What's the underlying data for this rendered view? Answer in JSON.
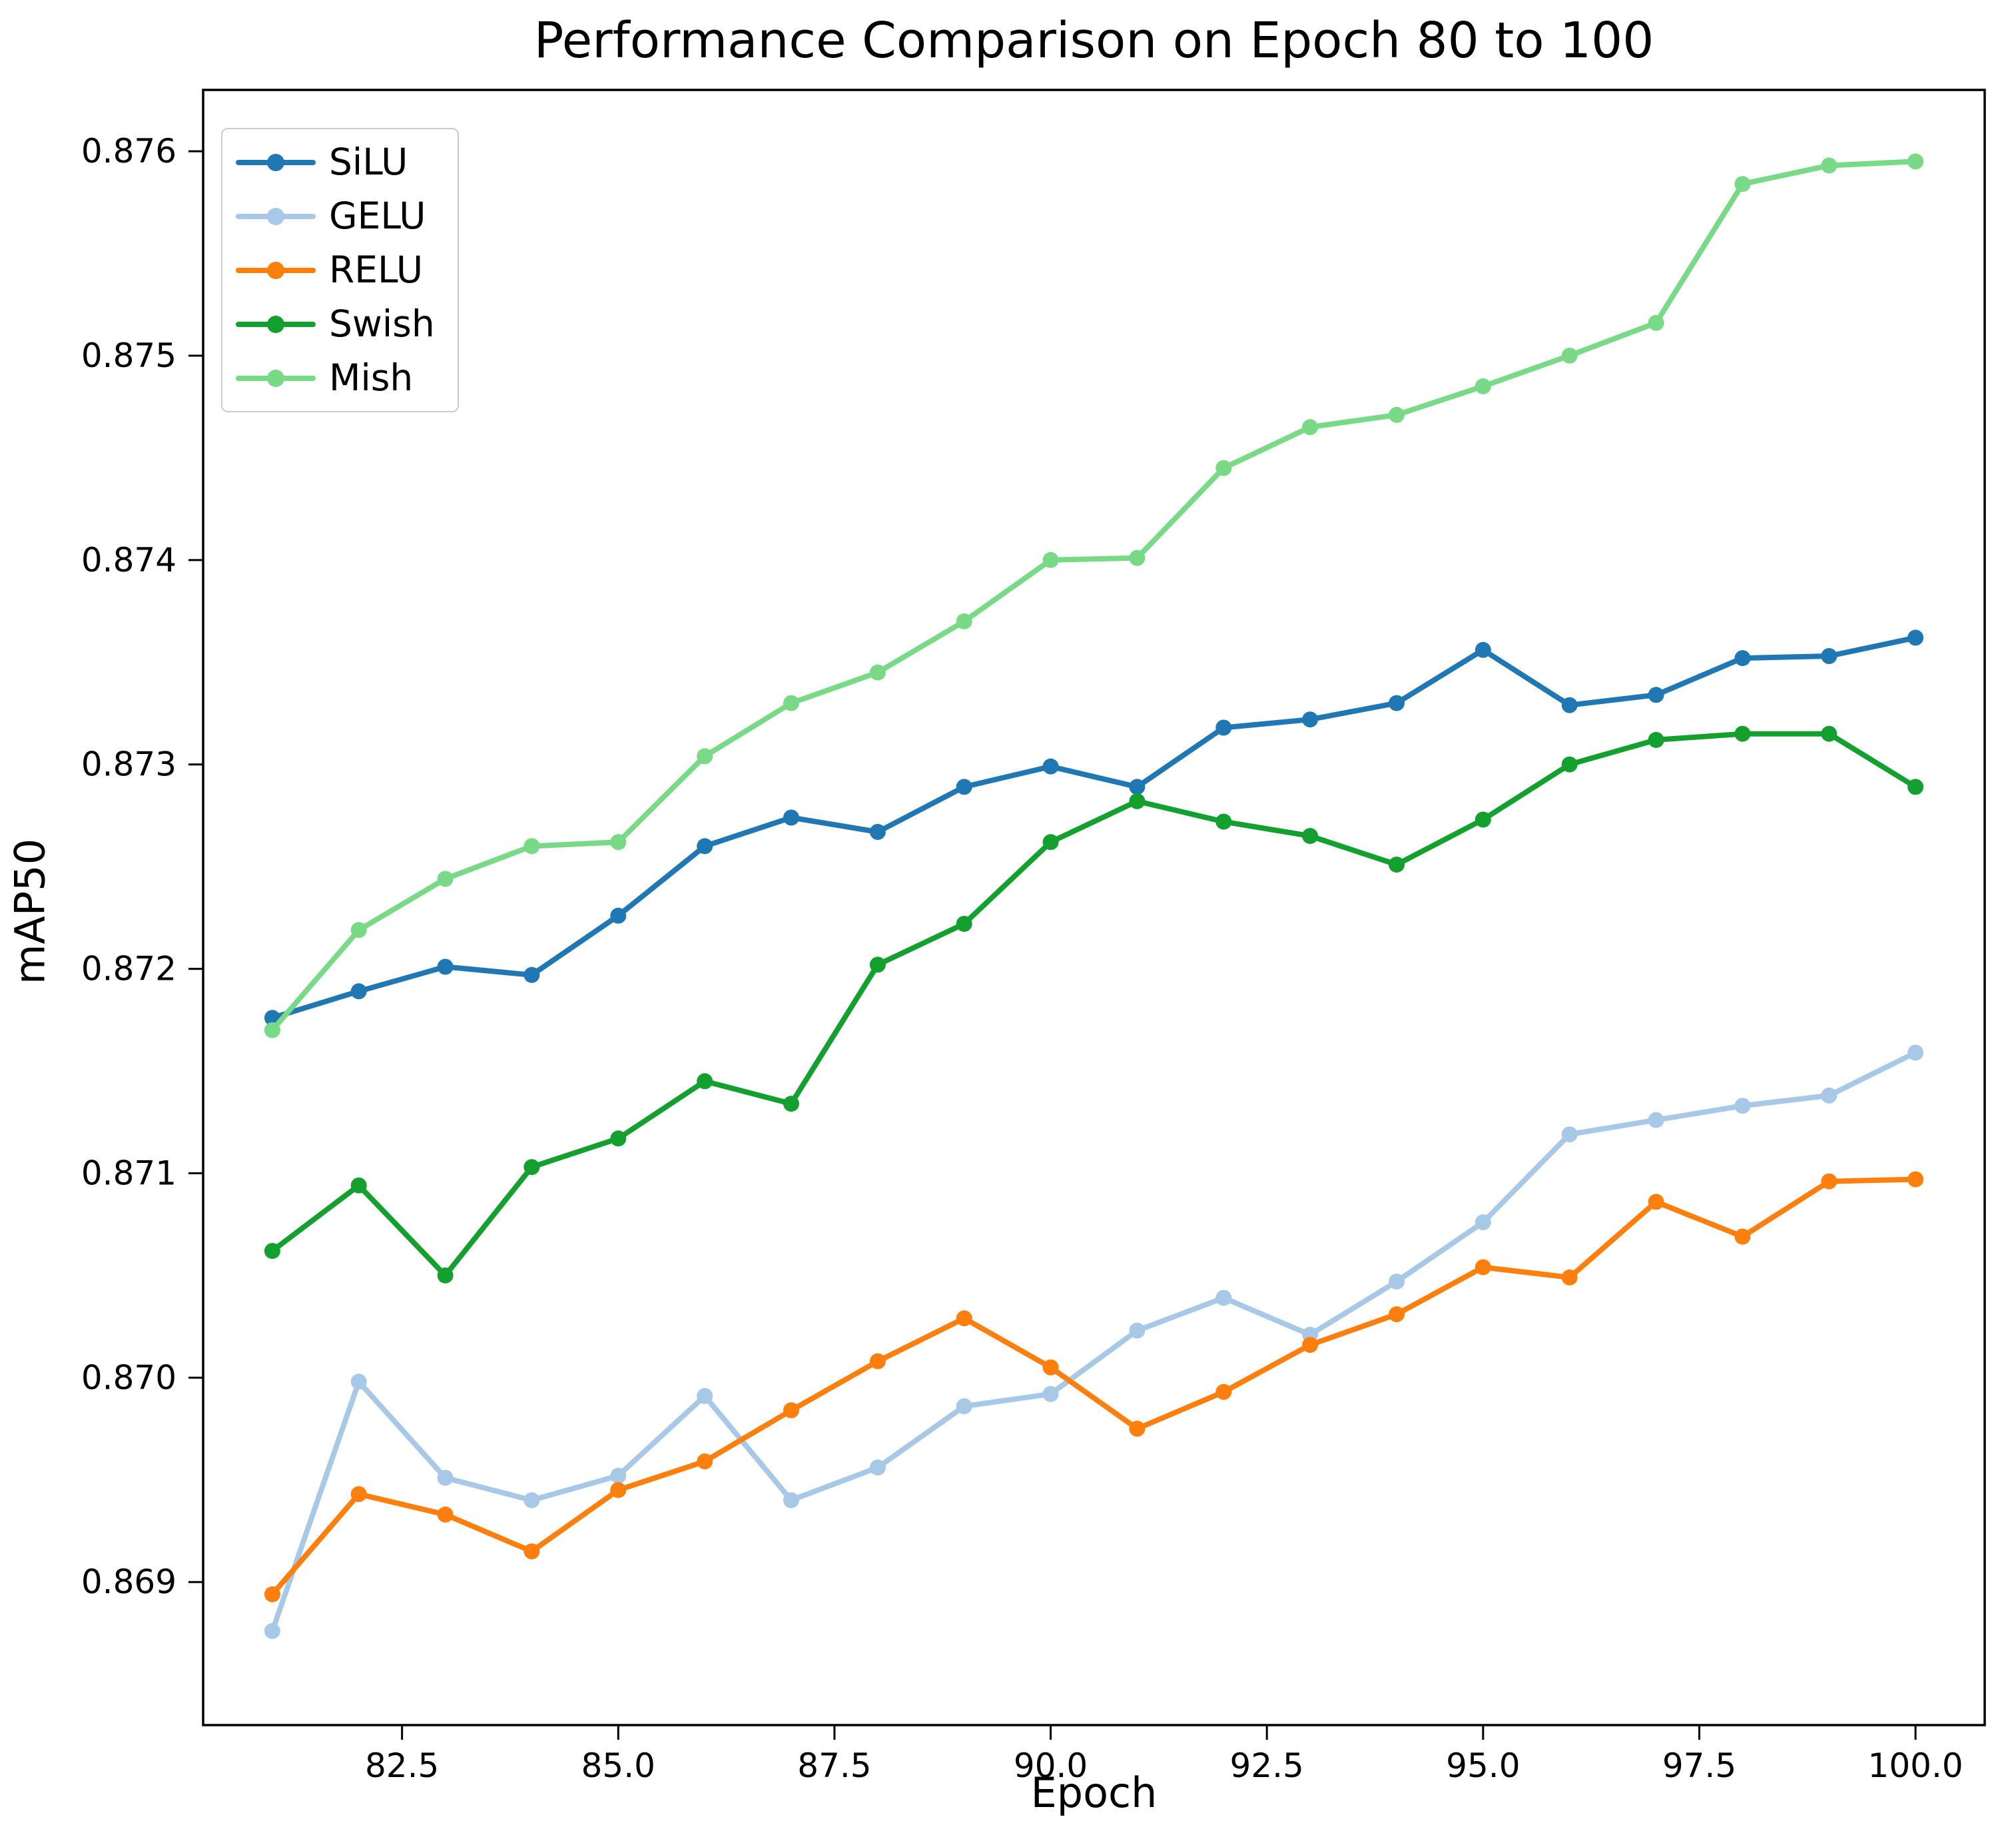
{
  "title": "Performance Comparison on Epoch 80 to 100",
  "chart_data": {
    "type": "line",
    "title": "Performance Comparison on Epoch 80 to 100",
    "xlabel": "Epoch",
    "ylabel": "mAP50",
    "xlim": [
      80.2,
      100.8
    ],
    "ylim": [
      0.8683,
      0.8763
    ],
    "grid": false,
    "legend_position": "upper left",
    "x_ticks": [
      82.5,
      85.0,
      87.5,
      90.0,
      92.5,
      95.0,
      97.5,
      100.0
    ],
    "x_tick_labels": [
      "82.5",
      "85.0",
      "87.5",
      "90.0",
      "92.5",
      "95.0",
      "97.5",
      "100.0"
    ],
    "y_ticks": [
      0.869,
      0.87,
      0.871,
      0.872,
      0.873,
      0.874,
      0.875,
      0.876
    ],
    "y_tick_labels": [
      "0.869",
      "0.870",
      "0.871",
      "0.872",
      "0.873",
      "0.874",
      "0.875",
      "0.876"
    ],
    "x": [
      81,
      82,
      83,
      84,
      85,
      86,
      87,
      88,
      89,
      90,
      91,
      92,
      93,
      94,
      95,
      96,
      97,
      98,
      99,
      100
    ],
    "series": [
      {
        "name": "SiLU",
        "color": "#1f77b4",
        "values": [
          0.87176,
          0.87189,
          0.87201,
          0.87197,
          0.87226,
          0.8726,
          0.87274,
          0.87267,
          0.87289,
          0.87299,
          0.87289,
          0.87318,
          0.87322,
          0.8733,
          0.87356,
          0.87329,
          0.87334,
          0.87352,
          0.87353,
          0.87362
        ]
      },
      {
        "name": "GELU",
        "color": "#a8c8e8",
        "values": [
          0.86876,
          0.86998,
          0.86951,
          0.8694,
          0.86952,
          0.86991,
          0.8694,
          0.86956,
          0.86986,
          0.86992,
          0.87023,
          0.87039,
          0.87021,
          0.87047,
          0.87076,
          0.87119,
          0.87126,
          0.87133,
          0.87138,
          0.87159
        ]
      },
      {
        "name": "RELU",
        "color": "#ff7f0e",
        "values": [
          0.86894,
          0.86943,
          0.86933,
          0.86915,
          0.86945,
          0.86959,
          0.86984,
          0.87008,
          0.87029,
          0.87005,
          0.86975,
          0.86993,
          0.87016,
          0.87031,
          0.87054,
          0.87049,
          0.87086,
          0.87069,
          0.87096,
          0.87097
        ]
      },
      {
        "name": "Swish",
        "color": "#13a02e",
        "values": [
          0.87062,
          0.87094,
          0.8705,
          0.87103,
          0.87117,
          0.87145,
          0.87134,
          0.87202,
          0.87222,
          0.87262,
          0.87282,
          0.87272,
          0.87265,
          0.87251,
          0.87273,
          0.873,
          0.87312,
          0.87315,
          0.87315,
          0.87289
        ]
      },
      {
        "name": "Mish",
        "color": "#78da87",
        "values": [
          0.8717,
          0.87219,
          0.87244,
          0.8726,
          0.87262,
          0.87304,
          0.8733,
          0.87345,
          0.8737,
          0.874,
          0.87401,
          0.87445,
          0.87465,
          0.87471,
          0.87485,
          0.875,
          0.87516,
          0.87584,
          0.87593,
          0.87595
        ]
      }
    ]
  }
}
